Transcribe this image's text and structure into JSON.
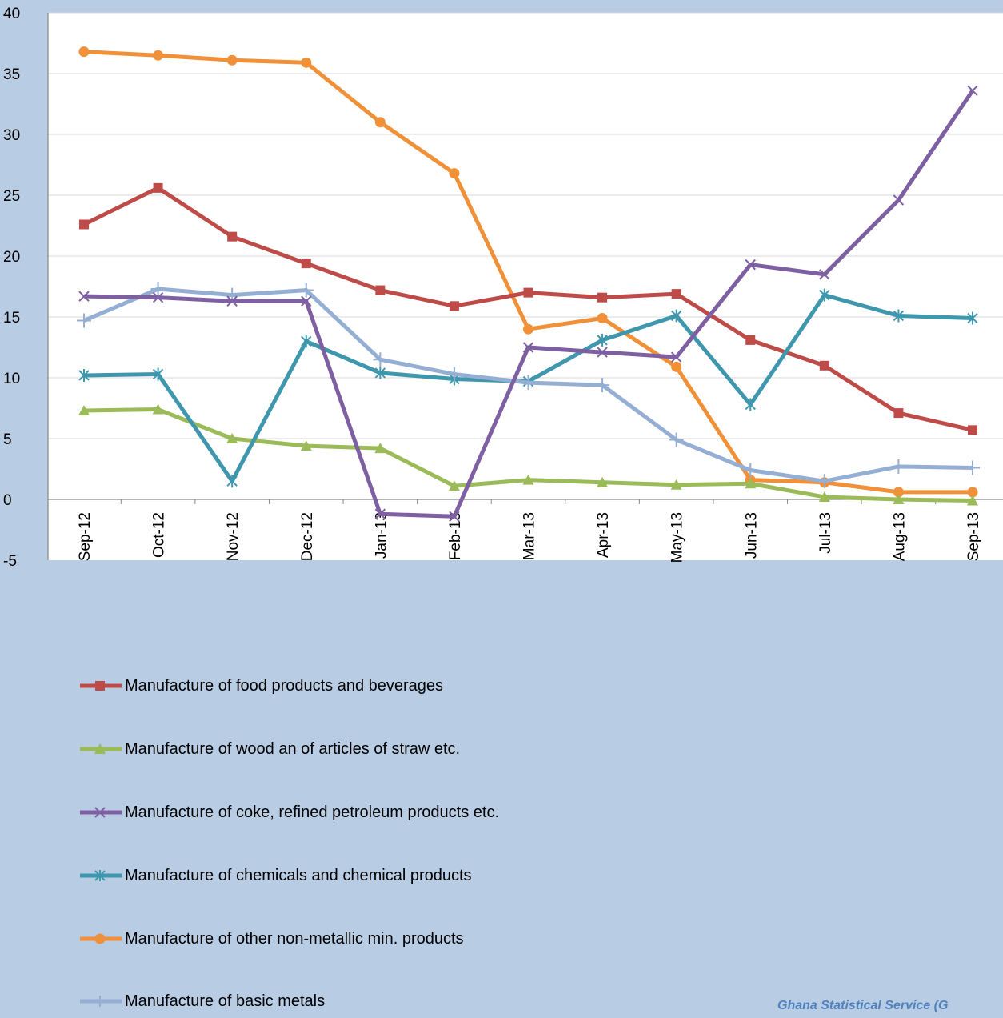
{
  "chart_data": {
    "type": "line",
    "categories": [
      "Sep-12",
      "Oct-12",
      "Nov-12",
      "Dec-12",
      "Jan-13",
      "Feb-13",
      "Mar-13",
      "Apr-13",
      "May-13",
      "Jun-13",
      "Jul-13",
      "Aug-13",
      "Sep-13"
    ],
    "ylim": [
      -5,
      40
    ],
    "yticks": [
      -5,
      0,
      5,
      10,
      15,
      20,
      25,
      30,
      35,
      40
    ],
    "grid": true,
    "legend_position": "bottom",
    "series": [
      {
        "name": "Manufacture of food products and beverages",
        "color": "#be4b48",
        "marker": "square",
        "values": [
          22.6,
          25.6,
          21.6,
          19.4,
          17.2,
          15.9,
          17.0,
          16.6,
          16.9,
          13.1,
          11.0,
          7.1,
          5.7
        ]
      },
      {
        "name": "Manufacture of wood an of articles of straw etc.",
        "color": "#9bbb59",
        "marker": "triangle",
        "values": [
          7.3,
          7.4,
          5.0,
          4.4,
          4.2,
          1.1,
          1.6,
          1.4,
          1.2,
          1.3,
          0.2,
          0.0,
          -0.1
        ]
      },
      {
        "name": "Manufacture of coke, refined petroleum products etc.",
        "color": "#7e5fa1",
        "marker": "x",
        "values": [
          16.7,
          16.6,
          16.3,
          16.3,
          -1.2,
          -1.4,
          12.5,
          12.1,
          11.7,
          19.3,
          18.5,
          24.6,
          33.6
        ]
      },
      {
        "name": "Manufacture of chemicals and chemical products",
        "color": "#3f97ad",
        "marker": "star",
        "values": [
          10.2,
          10.3,
          1.5,
          13.0,
          10.4,
          9.9,
          9.7,
          13.1,
          15.1,
          7.8,
          16.8,
          15.1,
          14.9
        ]
      },
      {
        "name": "Manufacture of other non-metallic min. products",
        "color": "#f0913a",
        "marker": "circle",
        "values": [
          36.8,
          36.5,
          36.1,
          35.9,
          31.0,
          26.8,
          14.0,
          14.9,
          10.9,
          1.6,
          1.4,
          0.6,
          0.6
        ]
      },
      {
        "name": "Manufacture of basic metals",
        "color": "#95aed4",
        "marker": "plus",
        "values": [
          14.7,
          17.3,
          16.8,
          17.2,
          11.5,
          10.3,
          9.6,
          9.4,
          4.9,
          2.4,
          1.5,
          2.7,
          2.6
        ]
      }
    ],
    "source": "Ghana Statistical Service (G"
  }
}
